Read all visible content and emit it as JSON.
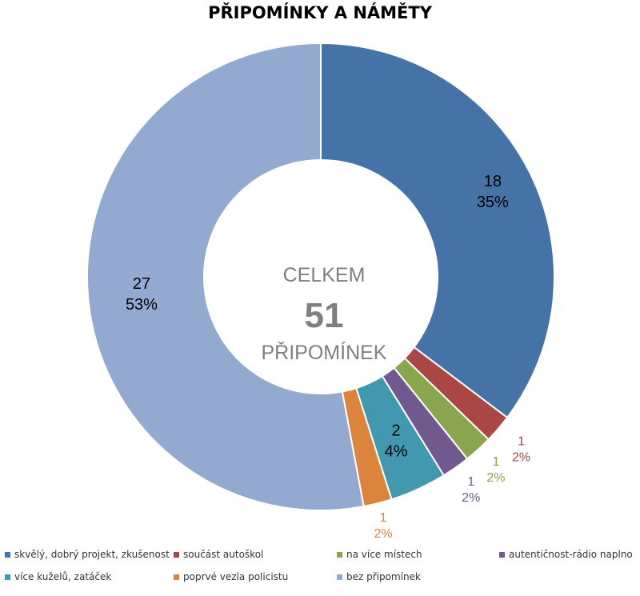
{
  "chart_data": {
    "type": "pie",
    "title": "PŘIPOMÍNKY A NÁMĚTY",
    "center_label": {
      "top": "CELKEM",
      "value": "51",
      "bottom": "PŘIPOMÍNEK"
    },
    "slices": [
      {
        "name": "skvělý, dobrý projekt, zkušenost",
        "value": 18,
        "percent": "35%",
        "color": "#4572a7"
      },
      {
        "name": "součást autoškol",
        "value": 1,
        "percent": "2%",
        "color": "#aa4643"
      },
      {
        "name": "na více místech",
        "value": 1,
        "percent": "2%",
        "color": "#89a54e"
      },
      {
        "name": "autentičnost-rádio naplno",
        "value": 1,
        "percent": "2%",
        "color": "#71588f"
      },
      {
        "name": "více kuželů, zatáček",
        "value": 2,
        "percent": "4%",
        "color": "#4198af"
      },
      {
        "name": "poprvé vezla policistu",
        "value": 1,
        "percent": "2%",
        "color": "#db843d"
      },
      {
        "name": "bez připomínek",
        "value": 27,
        "percent": "53%",
        "color": "#93a9cf"
      }
    ],
    "legend_position": "bottom"
  }
}
